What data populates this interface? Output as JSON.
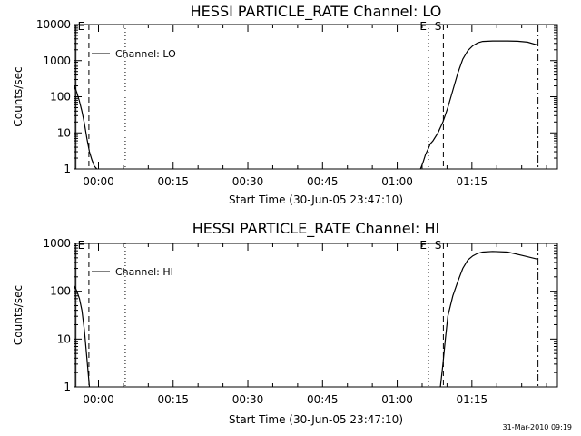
{
  "timestamp": "31-Mar-2010 09:19",
  "chart_data": [
    {
      "type": "line",
      "title": "HESSI PARTICLE_RATE Channel: LO",
      "xlabel": "Start Time (30-Jun-05 23:47:10)",
      "ylabel": "Counts/sec",
      "yscale": "log",
      "x_unit": "minutes after 23:47:10",
      "xlim": [
        8,
        105
      ],
      "ylim": [
        1,
        10000
      ],
      "xticks": [
        {
          "x": 12.83,
          "label": "00:00"
        },
        {
          "x": 27.83,
          "label": "00:15"
        },
        {
          "x": 42.83,
          "label": "00:30"
        },
        {
          "x": 57.83,
          "label": "00:45"
        },
        {
          "x": 72.83,
          "label": "01:00"
        },
        {
          "x": 87.83,
          "label": "01:15"
        }
      ],
      "yticks": [
        {
          "y": 1,
          "label": "1"
        },
        {
          "y": 10,
          "label": "10"
        },
        {
          "y": 100,
          "label": "100"
        },
        {
          "y": 1000,
          "label": "1000"
        },
        {
          "y": 10000,
          "label": "10000"
        }
      ],
      "legend": {
        "entry": "Channel: LO",
        "placement": "top-left"
      },
      "markers": [
        {
          "x": 8.3,
          "style": "solid",
          "label": "E"
        },
        {
          "x": 10.9,
          "style": "dashed",
          "label": ""
        },
        {
          "x": 18.2,
          "style": "dotted",
          "label": ""
        },
        {
          "x": 79.1,
          "style": "dotted",
          "label": "E"
        },
        {
          "x": 82.1,
          "style": "dashed",
          "label": "S"
        },
        {
          "x": 101.1,
          "style": "dashdot",
          "label": ""
        }
      ],
      "series": [
        {
          "segments": [
            [
              [
                8,
                200
              ],
              [
                8.5,
                130
              ],
              [
                9,
                75
              ],
              [
                9.5,
                40
              ],
              [
                10,
                18
              ],
              [
                10.5,
                7
              ],
              [
                11,
                3
              ],
              [
                11.5,
                1.8
              ],
              [
                12,
                1.2
              ],
              [
                12.5,
                1
              ]
            ],
            [
              [
                77.5,
                1
              ],
              [
                78,
                1.5
              ],
              [
                78.5,
                2.5
              ],
              [
                79,
                3.5
              ],
              [
                79.5,
                5
              ],
              [
                80,
                6
              ],
              [
                81,
                10
              ],
              [
                82,
                20
              ],
              [
                83,
                50
              ],
              [
                84,
                150
              ],
              [
                85,
                450
              ],
              [
                86,
                1100
              ],
              [
                87,
                1900
              ],
              [
                88,
                2600
              ],
              [
                89,
                3100
              ],
              [
                90,
                3400
              ],
              [
                92,
                3500
              ],
              [
                95,
                3500
              ],
              [
                97,
                3450
              ],
              [
                99,
                3250
              ],
              [
                101,
                2700
              ]
            ]
          ]
        }
      ]
    },
    {
      "type": "line",
      "title": "HESSI PARTICLE_RATE Channel: HI",
      "xlabel": "Start Time (30-Jun-05 23:47:10)",
      "ylabel": "Counts/sec",
      "yscale": "log",
      "x_unit": "minutes after 23:47:10",
      "xlim": [
        8,
        105
      ],
      "ylim": [
        1,
        1000
      ],
      "xticks": [
        {
          "x": 12.83,
          "label": "00:00"
        },
        {
          "x": 27.83,
          "label": "00:15"
        },
        {
          "x": 42.83,
          "label": "00:30"
        },
        {
          "x": 57.83,
          "label": "00:45"
        },
        {
          "x": 72.83,
          "label": "01:00"
        },
        {
          "x": 87.83,
          "label": "01:15"
        }
      ],
      "yticks": [
        {
          "y": 1,
          "label": "1"
        },
        {
          "y": 10,
          "label": "10"
        },
        {
          "y": 100,
          "label": "100"
        },
        {
          "y": 1000,
          "label": "1000"
        }
      ],
      "legend": {
        "entry": "Channel: HI",
        "placement": "top-left"
      },
      "markers": [
        {
          "x": 8.3,
          "style": "solid",
          "label": "E"
        },
        {
          "x": 10.9,
          "style": "dashed",
          "label": ""
        },
        {
          "x": 18.2,
          "style": "dotted",
          "label": ""
        },
        {
          "x": 79.1,
          "style": "dotted",
          "label": "E"
        },
        {
          "x": 82.1,
          "style": "dashed",
          "label": "S"
        },
        {
          "x": 101.1,
          "style": "dashdot",
          "label": ""
        }
      ],
      "series": [
        {
          "segments": [
            [
              [
                8,
                130
              ],
              [
                8.5,
                100
              ],
              [
                9,
                70
              ],
              [
                9.5,
                40
              ],
              [
                10,
                15
              ],
              [
                10.5,
                4
              ],
              [
                11,
                1
              ]
            ],
            [
              [
                81.5,
                1
              ],
              [
                82,
                3
              ],
              [
                82.5,
                10
              ],
              [
                83,
                30
              ],
              [
                84,
                80
              ],
              [
                85,
                160
              ],
              [
                86,
                300
              ],
              [
                87,
                450
              ],
              [
                88,
                550
              ],
              [
                89,
                620
              ],
              [
                90,
                660
              ],
              [
                92,
                680
              ],
              [
                95,
                660
              ],
              [
                98,
                560
              ],
              [
                101,
                470
              ]
            ]
          ]
        }
      ]
    }
  ]
}
